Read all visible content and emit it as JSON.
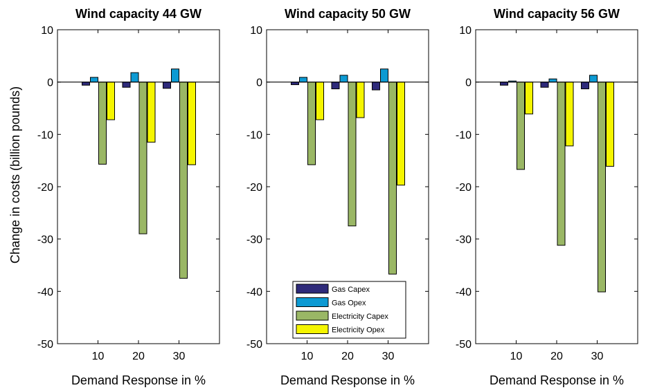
{
  "figure": {
    "ylabel": "Change in costs (billion pounds)"
  },
  "chart_data": [
    {
      "type": "bar",
      "title": "Wind capacity 44 GW",
      "xlabel": "Demand Response in %",
      "ylabel": "Change in costs (billion pounds)",
      "categories": [
        "10",
        "20",
        "30"
      ],
      "ylim": [
        -50,
        10
      ],
      "yticks": [
        "10",
        "0",
        "-10",
        "-20",
        "-30",
        "-40",
        "-50"
      ],
      "series": [
        {
          "name": "Gas Capex",
          "values": [
            -0.6,
            -1.0,
            -1.2
          ]
        },
        {
          "name": "Gas Opex",
          "values": [
            0.9,
            1.8,
            2.5
          ]
        },
        {
          "name": "Electricity Capex",
          "values": [
            -15.7,
            -29.0,
            -37.5
          ]
        },
        {
          "name": "Electricity Opex",
          "values": [
            -7.2,
            -11.5,
            -15.8
          ]
        }
      ]
    },
    {
      "type": "bar",
      "title": "Wind capacity 50 GW",
      "xlabel": "Demand Response in %",
      "ylabel": "Change in costs (billion pounds)",
      "categories": [
        "10",
        "20",
        "30"
      ],
      "ylim": [
        -50,
        10
      ],
      "yticks": [
        "10",
        "0",
        "-10",
        "-20",
        "-30",
        "-40",
        "-50"
      ],
      "legend_position": "bottom-center",
      "series": [
        {
          "name": "Gas Capex",
          "values": [
            -0.5,
            -1.3,
            -1.5
          ]
        },
        {
          "name": "Gas Opex",
          "values": [
            0.9,
            1.3,
            2.5
          ]
        },
        {
          "name": "Electricity Capex",
          "values": [
            -15.8,
            -27.5,
            -36.7
          ]
        },
        {
          "name": "Electricity Opex",
          "values": [
            -7.2,
            -6.8,
            -19.7
          ]
        }
      ]
    },
    {
      "type": "bar",
      "title": "Wind capacity 56 GW",
      "xlabel": "Demand Response in %",
      "ylabel": "Change in costs (billion pounds)",
      "categories": [
        "10",
        "20",
        "30"
      ],
      "ylim": [
        -50,
        10
      ],
      "yticks": [
        "10",
        "0",
        "-10",
        "-20",
        "-30",
        "-40",
        "-50"
      ],
      "series": [
        {
          "name": "Gas Capex",
          "values": [
            -0.6,
            -1.0,
            -1.3
          ]
        },
        {
          "name": "Gas Opex",
          "values": [
            0.2,
            0.6,
            1.3
          ]
        },
        {
          "name": "Electricity Capex",
          "values": [
            -16.7,
            -31.2,
            -40.1
          ]
        },
        {
          "name": "Electricity Opex",
          "values": [
            -6.1,
            -12.2,
            -16.1
          ]
        }
      ]
    }
  ],
  "colors": {
    "Gas Capex": "#2e2a7a",
    "Gas Opex": "#0d9ad3",
    "Electricity Capex": "#9ab765",
    "Electricity Opex": "#f5f500"
  }
}
